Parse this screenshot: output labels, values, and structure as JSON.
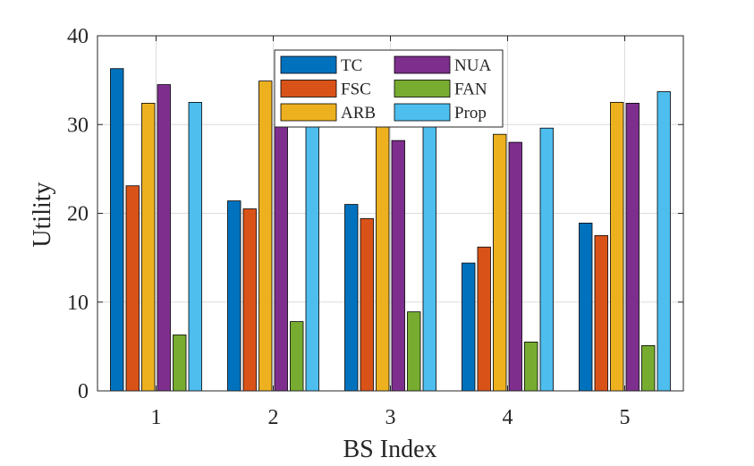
{
  "chart_data": {
    "type": "bar",
    "title": "",
    "xlabel": "BS Index",
    "ylabel": "Utility",
    "ylim": [
      0,
      40
    ],
    "yticks": [
      0,
      10,
      20,
      30,
      40
    ],
    "categories": [
      "1",
      "2",
      "3",
      "4",
      "5"
    ],
    "grid": true,
    "legend_position": "top-center",
    "legend_columns": 2,
    "series": [
      {
        "name": "TC",
        "color": "#0072BD",
        "values": [
          36.3,
          21.4,
          21.0,
          14.4,
          18.9
        ]
      },
      {
        "name": "FSC",
        "color": "#D95319",
        "values": [
          23.1,
          20.5,
          19.4,
          16.2,
          17.5
        ]
      },
      {
        "name": "ARB",
        "color": "#EDB120",
        "values": [
          32.4,
          34.9,
          30.5,
          28.9,
          32.5
        ]
      },
      {
        "name": "NUA",
        "color": "#7E2F8E",
        "values": [
          34.5,
          33.5,
          28.2,
          28.0,
          32.4
        ]
      },
      {
        "name": "FAN",
        "color": "#77AC30",
        "values": [
          6.3,
          7.8,
          8.9,
          5.5,
          5.1
        ]
      },
      {
        "name": "Prop",
        "color": "#4DBEEE",
        "values": [
          32.5,
          31.0,
          30.5,
          29.6,
          33.7
        ]
      }
    ]
  }
}
